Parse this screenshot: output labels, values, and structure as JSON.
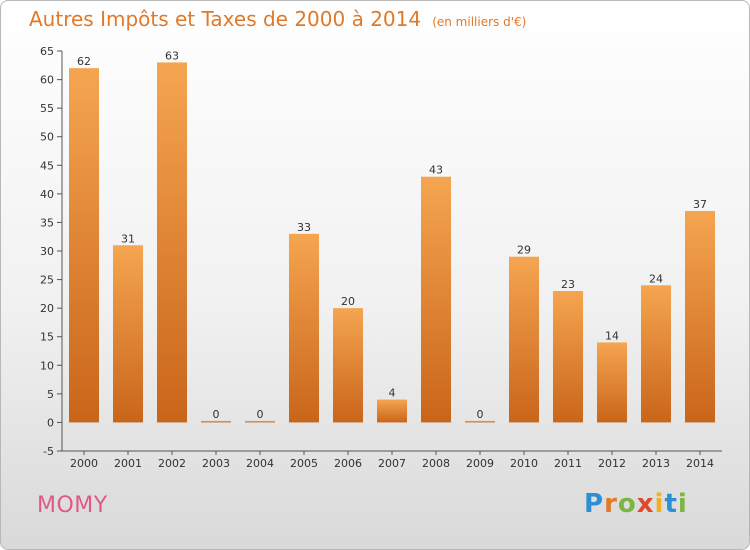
{
  "chart_data": {
    "type": "bar",
    "title": "Autres Impôts et Taxes de 2000 à 2014",
    "subtitle": "(en milliers d'€)",
    "categories": [
      "2000",
      "2001",
      "2002",
      "2003",
      "2004",
      "2005",
      "2006",
      "2007",
      "2008",
      "2009",
      "2010",
      "2011",
      "2012",
      "2013",
      "2014"
    ],
    "values": [
      62,
      31,
      63,
      0,
      0,
      33,
      20,
      4,
      43,
      0,
      29,
      23,
      14,
      24,
      37
    ],
    "data_labels": [
      "62",
      "31",
      "63",
      "0",
      "0",
      "33",
      "20",
      "4",
      "43",
      "0",
      "29",
      "23",
      "14",
      "24",
      "37"
    ],
    "ylim": [
      -5,
      65
    ],
    "yticks": [
      -5,
      0,
      5,
      10,
      15,
      20,
      25,
      30,
      35,
      40,
      45,
      50,
      55,
      60,
      65
    ],
    "grid": false,
    "bar_color_top": "#f5a550",
    "bar_color_bottom": "#c9651a"
  },
  "commune": "MOMY",
  "logo": {
    "letters": [
      "P",
      "r",
      "o",
      "x",
      "i",
      "t",
      "i"
    ],
    "colors": [
      "#2a8fd6",
      "#e0792a",
      "#7ab640",
      "#e0492a",
      "#f0b020",
      "#2a8fd6",
      "#7ab640"
    ]
  }
}
